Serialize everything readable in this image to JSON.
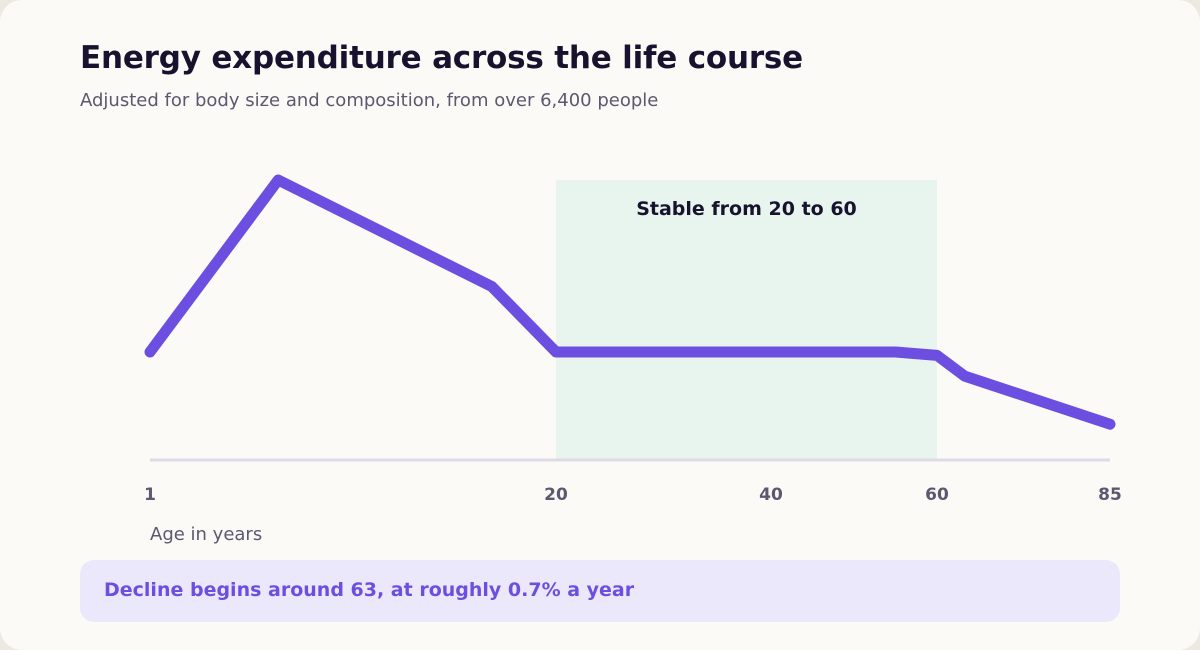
{
  "header": {
    "title": "Energy expenditure across the life course",
    "subtitle": "Adjusted for body size and composition, from over 6,400 people"
  },
  "chart_data": {
    "type": "line",
    "title": "Energy expenditure across the life course",
    "subtitle": "Adjusted for body size and composition, from over 6,400 people",
    "xlabel": "Age in years",
    "ylabel": "",
    "x_ticks": [
      1,
      20,
      40,
      60,
      85
    ],
    "xlim": [
      1,
      85
    ],
    "y_axis_shown": false,
    "grid": false,
    "legend": "none",
    "series": [
      {
        "color": "#6c4fe0",
        "x": [
          1,
          7,
          17,
          20,
          55,
          60,
          64,
          85
        ],
        "y": [
          100,
          150,
          119,
          100,
          100,
          99,
          93,
          79
        ]
      }
    ],
    "annotations": [
      {
        "type": "band",
        "x_from": 20,
        "x_to": 60,
        "label": "Stable from 20 to 60",
        "color": "#e8f5ee"
      }
    ]
  },
  "callout": {
    "text": "Decline begins around 63, at roughly 0.7% a year"
  },
  "colors": {
    "line": "#6c4fe0",
    "band": "#e8f5ee",
    "axis": "#dcdbe6",
    "callout_bg": "#ebe8fb",
    "callout_text": "#6c4fe0",
    "background": "#fcfaf6"
  }
}
